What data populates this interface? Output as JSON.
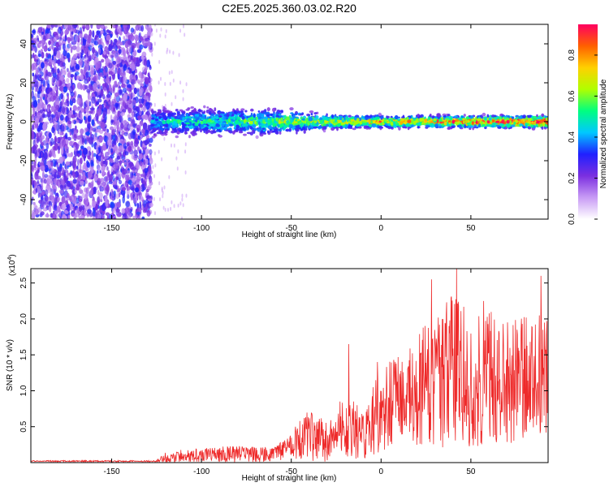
{
  "title": "C2E5.2025.360.03.02.R20",
  "colors": {
    "snr_line": "#ee2a2a",
    "noise_dots": "#7b2fe0",
    "axis": "#000000"
  },
  "chart_data": [
    {
      "type": "heatmap",
      "xlabel": "Height of straight line (km)",
      "ylabel": "Frequency (Hz)",
      "xlim": [
        -195,
        93
      ],
      "ylim": [
        -50,
        50
      ],
      "x_ticks": [
        "-150",
        "-100",
        "-50",
        "0",
        "50"
      ],
      "y_ticks": [
        "-40",
        "-20",
        "0",
        "20",
        "40"
      ],
      "noise_region_x": [
        -195,
        -128
      ],
      "signal_band_center_hz": 0,
      "signal_band_halfwidth_hz": [
        [
          -128,
          6
        ],
        [
          -50,
          5
        ],
        [
          -30,
          3
        ],
        [
          0,
          2.5
        ],
        [
          90,
          2.5
        ]
      ],
      "colorbar": {
        "label": "Normalized spectral amplitude",
        "ticks": [
          "0.0",
          "0.2",
          "0.4",
          "0.6",
          "0.8"
        ],
        "range": [
          0,
          0.95
        ],
        "stops": [
          "#ffffff",
          "#c89bf5",
          "#7b2fe0",
          "#2020ff",
          "#00c8ff",
          "#00ff80",
          "#b0ff00",
          "#ffd000",
          "#ff6000",
          "#ff0060"
        ]
      }
    },
    {
      "type": "line",
      "xlabel": "Height of straight line (km)",
      "ylabel": "SNR (10 * v/v)",
      "y_scale_label": "(x10",
      "y_scale_exp": "4",
      "xlim": [
        -195,
        93
      ],
      "ylim": [
        0,
        2.7
      ],
      "x_ticks": [
        "-150",
        "-100",
        "-50",
        "0",
        "50"
      ],
      "y_ticks": [
        "0.5",
        "1.0",
        "1.5",
        "2.0",
        "2.5"
      ],
      "envelope": {
        "x": [
          -195,
          -125,
          -120,
          -100,
          -80,
          -60,
          -50,
          -45,
          -40,
          -30,
          -25,
          -22,
          -15,
          -10,
          0,
          10,
          20,
          30,
          40,
          50,
          60,
          70,
          80,
          90,
          93
        ],
        "mean": [
          0.02,
          0.02,
          0.08,
          0.1,
          0.12,
          0.1,
          0.22,
          0.35,
          0.38,
          0.3,
          0.4,
          0.55,
          0.45,
          0.35,
          0.75,
          0.9,
          1.0,
          1.15,
          1.25,
          1.15,
          1.25,
          1.15,
          1.2,
          1.25,
          1.2
        ],
        "amplitude": [
          0.01,
          0.01,
          0.08,
          0.1,
          0.12,
          0.1,
          0.18,
          0.3,
          0.35,
          0.3,
          0.3,
          0.45,
          0.4,
          0.35,
          0.6,
          0.7,
          0.8,
          0.95,
          1.1,
          0.95,
          1.0,
          0.9,
          0.85,
          0.85,
          0.8
        ]
      },
      "peaks": [
        [
          -18,
          1.65
        ],
        [
          -2,
          1.4
        ],
        [
          28,
          2.55
        ],
        [
          42,
          2.7
        ],
        [
          57,
          2.25
        ],
        [
          89,
          2.6
        ]
      ]
    }
  ]
}
